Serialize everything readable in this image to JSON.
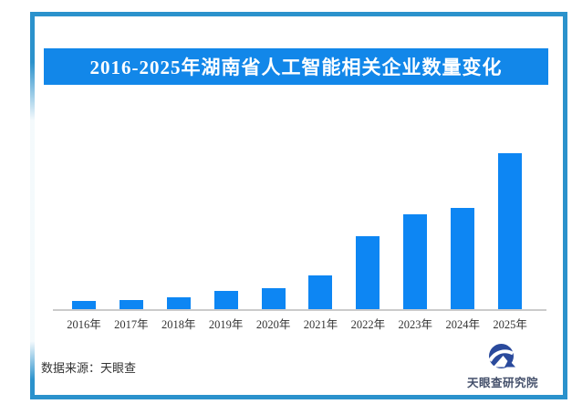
{
  "header": {
    "title": "2016-2025年湖南省人工智能相关企业数量变化"
  },
  "chart_data": {
    "type": "bar",
    "title": "2016-2025年湖南省人工智能相关企业数量变化",
    "categories": [
      "2016年",
      "2017年",
      "2018年",
      "2019年",
      "2020年",
      "2021年",
      "2022年",
      "2023年",
      "2024年",
      "2025年"
    ],
    "values": [
      9,
      10,
      13,
      20,
      23,
      37,
      80,
      104,
      111,
      171
    ],
    "xlabel": "",
    "ylabel": "",
    "y_axis_shown": false,
    "value_labels_shown": false,
    "note": "source chart has no numeric axis or data labels; values are estimated relative bar heights in pixels",
    "grid": false,
    "legend": false,
    "bar_color": "#0d86f3"
  },
  "footer": {
    "source": "数据来源：天眼查",
    "publisher": "天眼查研究院"
  },
  "colors": {
    "frame": "#2b92cc",
    "title_bar_bg": "#1287e9",
    "title_text": "#ffffff",
    "bar": "#0d86f3",
    "axis_line": "#cbcbcb",
    "label_text": "#333333",
    "logo_navy": "#2a4a9c",
    "logo_text": "#44506b"
  }
}
